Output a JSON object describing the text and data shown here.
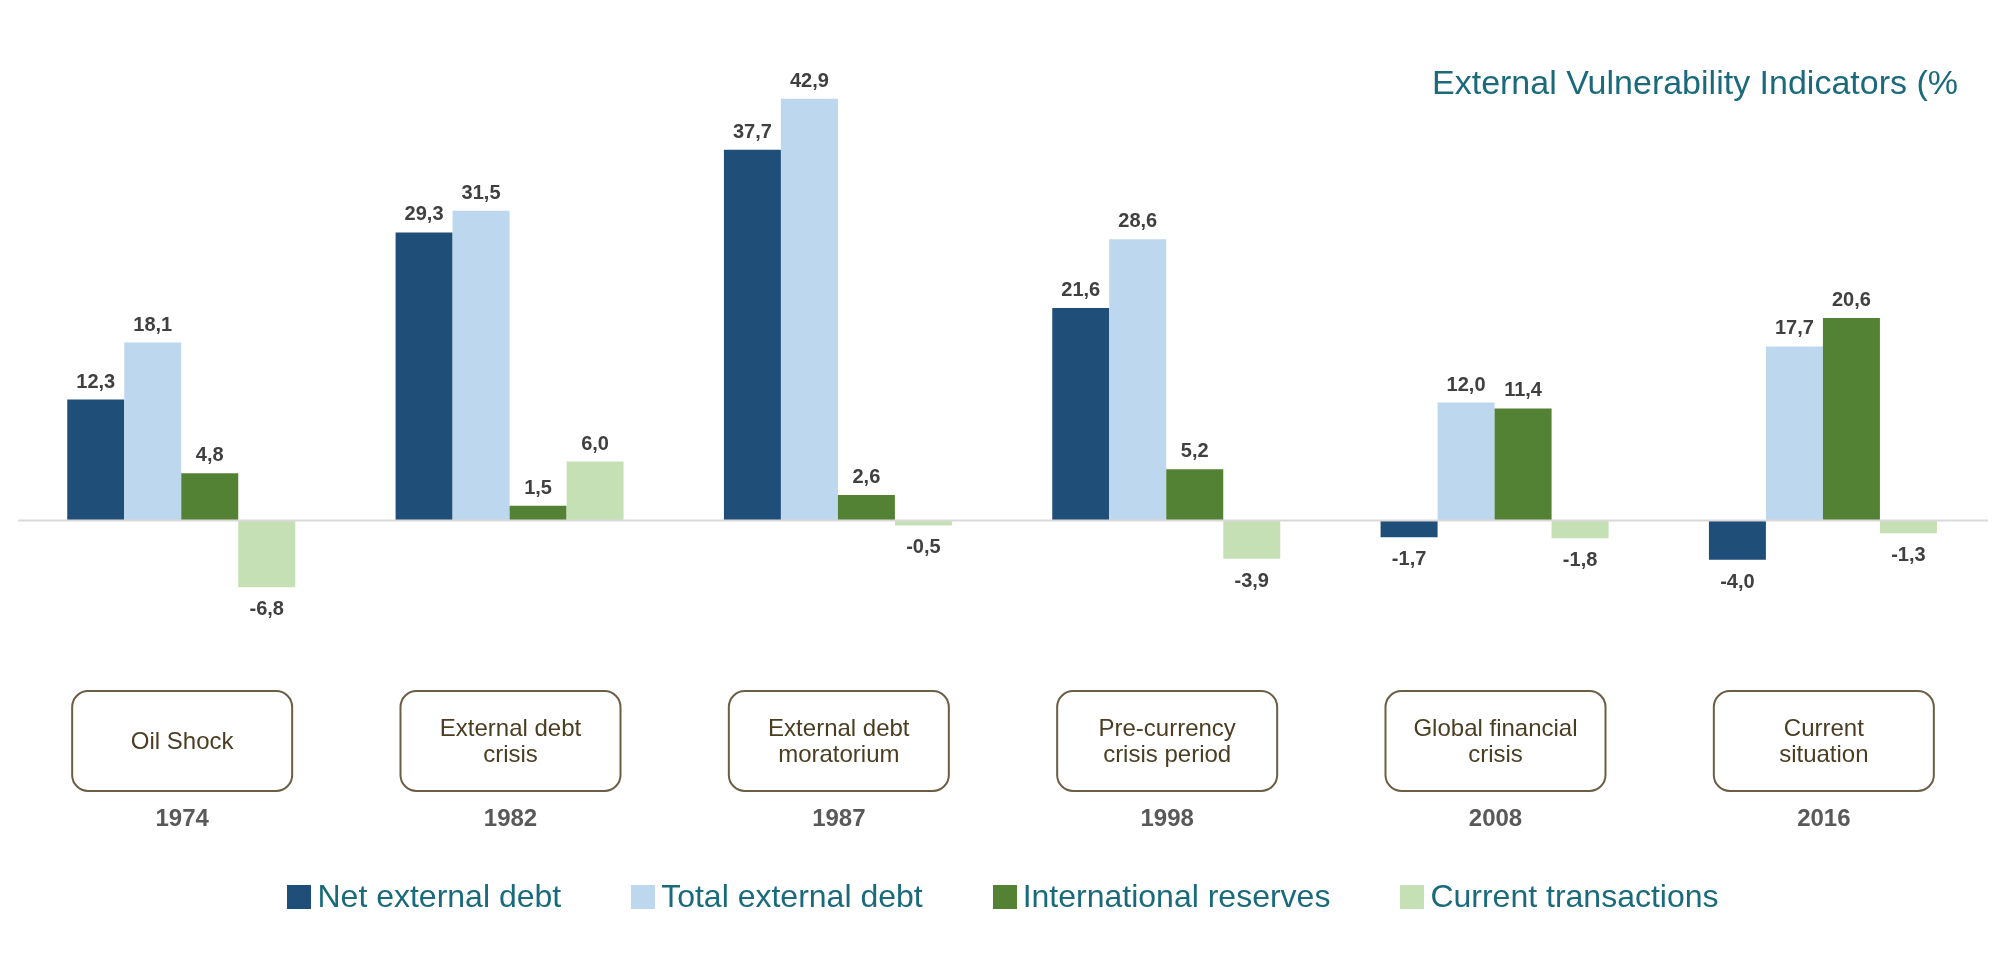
{
  "chart_data": {
    "type": "bar",
    "title": "External Vulnerability Indicators (%",
    "categories": [
      "1974",
      "1982",
      "1987",
      "1998",
      "2008",
      "2016"
    ],
    "series": [
      {
        "name": "Net external debt",
        "color": "#1f4e79",
        "values": [
          12.3,
          29.3,
          37.7,
          21.6,
          -1.7,
          -4.0
        ],
        "value_labels": [
          "12,3",
          "29,3",
          "37,7",
          "21,6",
          "-1,7",
          "-4,0"
        ]
      },
      {
        "name": "Total external debt",
        "color": "#bdd7ee",
        "values": [
          18.1,
          31.5,
          42.9,
          28.6,
          12.0,
          17.7
        ],
        "value_labels": [
          "18,1",
          "31,5",
          "42,9",
          "28,6",
          "12,0",
          "17,7"
        ]
      },
      {
        "name": "International reserves",
        "color": "#548235",
        "values": [
          4.8,
          1.5,
          2.6,
          5.2,
          11.4,
          20.6
        ],
        "value_labels": [
          "4,8",
          "1,5",
          "2,6",
          "5,2",
          "11,4",
          "20,6"
        ]
      },
      {
        "name": "Current transactions",
        "color": "#c5e0b4",
        "values": [
          -6.8,
          6.0,
          -0.5,
          -3.9,
          -1.8,
          -1.3
        ],
        "value_labels": [
          "-6,8",
          "6,0",
          "-0,5",
          "-3,9",
          "-1,8",
          "-1,3"
        ]
      }
    ],
    "annotations": [
      "Oil Shock",
      "External debt crisis",
      "External debt moratorium",
      "Pre-currency crisis period",
      "Global financial crisis",
      "Current situation"
    ],
    "legend": "bottom"
  }
}
